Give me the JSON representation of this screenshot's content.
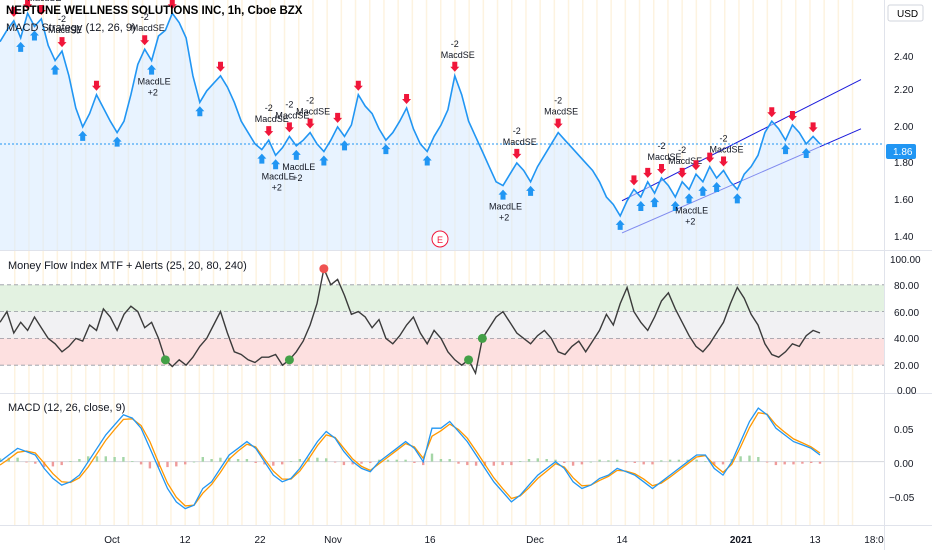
{
  "header": {
    "title": "NEPTUNE WELLNESS SOLUTIONS INC, 1h, Cboe BZX",
    "currency": "USD"
  },
  "price_pane": {
    "study_label": "MACD Strategy (12, 26, 9)",
    "last_price_label": "1.86",
    "earnings_marker": "E",
    "y_ticks": [
      "2.40",
      "2.20",
      "2.00",
      "1.80",
      "1.60",
      "1.40"
    ]
  },
  "mfi_pane": {
    "title": "Money Flow Index MTF + Alerts (25, 20, 80, 240)",
    "y_ticks": [
      "100.00",
      "80.00",
      "60.00",
      "40.00",
      "20.00",
      "0.00"
    ]
  },
  "macd_pane": {
    "title": "MACD (12, 26, close, 9)",
    "y_ticks": [
      "0.05",
      "0.00",
      "−0.05"
    ]
  },
  "x_axis": {
    "ticks": [
      "Oct",
      "12",
      "22",
      "Nov",
      "16",
      "Dec",
      "14",
      "2021",
      "13",
      "18:0"
    ]
  },
  "colors": {
    "price_line": "#2196f3",
    "price_fill": "#d6eaff",
    "channel": "#1a1adb",
    "long_arrow": "#2196f3",
    "short_arrow": "#f0163a",
    "mfi_line": "#3b3b3b",
    "overbought_band": "#e3f2e1",
    "oversold_band": "#fde0e0",
    "neutral_band": "#f1f1f3",
    "macd_line": "#2196f3",
    "signal_line": "#ff9800",
    "hist_pos": "#a5d6a7",
    "hist_neg": "#ef9a9a",
    "last_price_badge": "#2196f3",
    "vgrid_tint": "#fdf3e0"
  },
  "chart_data": [
    {
      "type": "line",
      "title": "NEPTUNE WELLNESS SOLUTIONS INC, 1h, Cboe BZX",
      "ylim": [
        1.3,
        2.62
      ],
      "series": [
        {
          "name": "Close",
          "values": [
            2.4,
            2.46,
            2.51,
            2.42,
            2.55,
            2.48,
            2.52,
            2.38,
            2.3,
            2.35,
            2.22,
            2.05,
            1.95,
            2.02,
            2.12,
            2.05,
            1.98,
            1.92,
            1.98,
            2.12,
            2.28,
            2.36,
            2.3,
            2.43,
            2.46,
            2.55,
            2.5,
            2.42,
            2.22,
            2.08,
            2.14,
            2.18,
            2.22,
            2.16,
            2.08,
            1.98,
            1.92,
            1.86,
            1.83,
            1.88,
            1.8,
            1.84,
            1.9,
            1.85,
            1.88,
            1.92,
            1.86,
            1.82,
            1.88,
            1.95,
            1.9,
            1.96,
            2.12,
            2.06,
            2.02,
            1.94,
            1.88,
            1.92,
            1.98,
            2.05,
            1.94,
            1.86,
            1.82,
            1.9,
            1.96,
            2.04,
            2.22,
            2.12,
            1.98,
            1.9,
            1.82,
            1.74,
            1.66,
            1.64,
            1.7,
            1.76,
            1.72,
            1.66,
            1.74,
            1.8,
            1.86,
            1.92,
            1.88,
            1.84,
            1.8,
            1.76,
            1.72,
            1.66,
            1.58,
            1.54,
            1.48,
            1.56,
            1.62,
            1.58,
            1.66,
            1.6,
            1.68,
            1.64,
            1.58,
            1.66,
            1.62,
            1.7,
            1.66,
            1.74,
            1.68,
            1.72,
            1.66,
            1.62,
            1.7,
            1.74,
            1.8,
            1.92,
            1.98,
            1.94,
            1.88,
            1.96,
            1.92,
            1.86,
            1.9,
            1.86
          ]
        }
      ],
      "annotations": [
        "MacdLE",
        "MacdSE",
        "+2",
        "-2",
        "E"
      ],
      "trend_channel": true
    },
    {
      "type": "line",
      "title": "Money Flow Index MTF + Alerts (25, 20, 80, 240)",
      "ylim": [
        0,
        100
      ],
      "levels": [
        20,
        40,
        60,
        80
      ],
      "series": [
        {
          "name": "MFI",
          "values": [
            52,
            60,
            44,
            52,
            46,
            56,
            48,
            40,
            36,
            30,
            34,
            40,
            38,
            50,
            46,
            62,
            56,
            46,
            58,
            64,
            60,
            48,
            52,
            40,
            24,
            19,
            24,
            20,
            26,
            34,
            40,
            50,
            60,
            44,
            30,
            28,
            24,
            22,
            26,
            26,
            28,
            20,
            24,
            30,
            38,
            50,
            66,
            92,
            80,
            84,
            72,
            58,
            60,
            56,
            48,
            54,
            40,
            36,
            42,
            50,
            56,
            44,
            36,
            46,
            40,
            30,
            24,
            20,
            24,
            14,
            40,
            48,
            56,
            60,
            52,
            44,
            40,
            36,
            42,
            46,
            40,
            30,
            28,
            34,
            38,
            30,
            38,
            46,
            58,
            50,
            66,
            78,
            60,
            52,
            46,
            56,
            68,
            74,
            62,
            52,
            42,
            34,
            30,
            36,
            44,
            52,
            66,
            78,
            70,
            58,
            50,
            36,
            28,
            26,
            30,
            36,
            34,
            42,
            46,
            44
          ]
        }
      ],
      "alert_points_low": [
        24,
        42,
        68,
        70
      ],
      "alert_points_high": [
        47
      ]
    },
    {
      "type": "line",
      "title": "MACD (12, 26, close, 9)",
      "ylim": [
        -0.09,
        0.095
      ],
      "series": [
        {
          "name": "MACD",
          "values": [
            0.0,
            0.01,
            0.02,
            0.015,
            0.01,
            -0.01,
            -0.025,
            -0.035,
            -0.03,
            -0.02,
            0.0,
            0.02,
            0.04,
            0.055,
            0.07,
            0.065,
            0.05,
            0.02,
            -0.01,
            -0.04,
            -0.06,
            -0.07,
            -0.065,
            -0.04,
            -0.03,
            -0.01,
            0.01,
            0.02,
            0.03,
            0.02,
            0.0,
            -0.02,
            -0.03,
            -0.025,
            -0.01,
            0.01,
            0.03,
            0.045,
            0.035,
            0.015,
            0.0,
            -0.01,
            -0.015,
            0.0,
            0.01,
            0.02,
            0.03,
            0.02,
            0.0,
            0.05,
            0.05,
            0.06,
            0.045,
            0.03,
            0.01,
            -0.01,
            -0.03,
            -0.045,
            -0.06,
            -0.05,
            -0.035,
            -0.02,
            -0.01,
            0.0,
            -0.01,
            -0.03,
            -0.04,
            -0.035,
            -0.025,
            -0.02,
            -0.01,
            -0.015,
            -0.02,
            -0.03,
            -0.04,
            -0.03,
            -0.02,
            -0.01,
            0.0,
            0.01,
            0.01,
            -0.01,
            -0.02,
            0.0,
            0.03,
            0.06,
            0.08,
            0.07,
            0.05,
            0.04,
            0.03,
            0.025,
            0.02,
            0.01
          ]
        },
        {
          "name": "Signal",
          "values": [
            -0.005,
            0.004,
            0.014,
            0.016,
            0.013,
            -0.002,
            -0.018,
            -0.03,
            -0.031,
            -0.024,
            -0.008,
            0.012,
            0.032,
            0.048,
            0.063,
            0.064,
            0.054,
            0.03,
            -0.002,
            -0.032,
            -0.053,
            -0.066,
            -0.065,
            -0.047,
            -0.034,
            -0.016,
            0.004,
            0.016,
            0.026,
            0.022,
            0.004,
            -0.014,
            -0.026,
            -0.026,
            -0.014,
            0.004,
            0.024,
            0.04,
            0.036,
            0.02,
            0.004,
            -0.007,
            -0.013,
            -0.003,
            0.007,
            0.017,
            0.027,
            0.022,
            0.005,
            0.038,
            0.046,
            0.056,
            0.048,
            0.035,
            0.016,
            -0.004,
            -0.024,
            -0.04,
            -0.055,
            -0.051,
            -0.039,
            -0.025,
            -0.014,
            -0.003,
            -0.008,
            -0.024,
            -0.036,
            -0.035,
            -0.028,
            -0.022,
            -0.013,
            -0.014,
            -0.018,
            -0.026,
            -0.036,
            -0.032,
            -0.023,
            -0.013,
            -0.003,
            0.007,
            0.009,
            -0.005,
            -0.016,
            -0.004,
            0.022,
            0.051,
            0.073,
            0.071,
            0.055,
            0.044,
            0.034,
            0.028,
            0.022,
            0.013
          ]
        }
      ],
      "histogram": [
        0.005,
        0.006,
        0.006,
        -0.001,
        -0.003,
        -0.008,
        -0.007,
        -0.005,
        0.001,
        0.004,
        0.008,
        0.008,
        0.008,
        0.007,
        0.007,
        0.001,
        -0.004,
        -0.01,
        -0.008,
        -0.008,
        -0.007,
        -0.004,
        0.0,
        0.007,
        0.004,
        0.006,
        0.006,
        0.004,
        0.004,
        -0.002,
        -0.004,
        -0.006,
        -0.004,
        0.001,
        0.004,
        0.006,
        0.006,
        0.005,
        -0.001,
        -0.005,
        -0.004,
        -0.003,
        -0.002,
        0.003,
        0.003,
        0.003,
        0.003,
        -0.002,
        -0.005,
        0.012,
        0.004,
        0.004,
        -0.003,
        -0.005,
        -0.006,
        -0.006,
        -0.006,
        -0.005,
        -0.005,
        0.001,
        0.004,
        0.005,
        0.004,
        0.003,
        -0.002,
        -0.006,
        -0.004,
        0.0,
        0.003,
        0.002,
        0.003,
        -0.001,
        -0.002,
        -0.004,
        -0.004,
        0.002,
        0.003,
        0.003,
        0.003,
        0.003,
        0.001,
        -0.005,
        -0.004,
        0.004,
        0.008,
        0.009,
        0.007,
        -0.001,
        -0.005,
        -0.004,
        -0.004,
        -0.003,
        -0.002,
        -0.003
      ]
    }
  ]
}
